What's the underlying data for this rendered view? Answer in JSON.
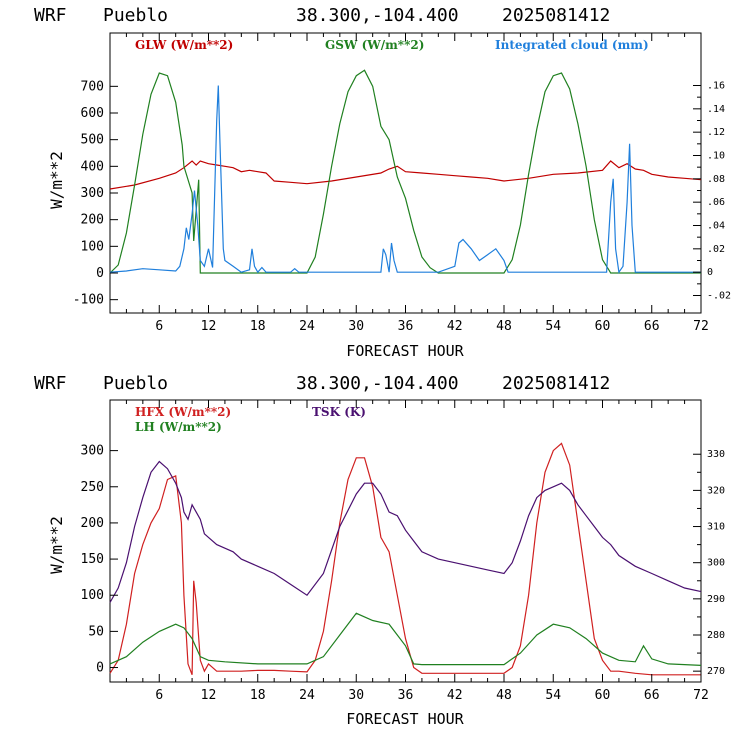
{
  "header": {
    "model": "WRF",
    "station": "Pueblo",
    "coords": "38.300,-104.400",
    "run": "2025081412"
  },
  "chart_data": [
    {
      "type": "line",
      "xlabel": "FORECAST HOUR",
      "ylabel": "W/m**2",
      "xlim": [
        0,
        72
      ],
      "ylim": [
        -150,
        900
      ],
      "y2lim": [
        -0.035,
        0.205
      ],
      "xticks": [
        "6",
        "12",
        "18",
        "24",
        "30",
        "36",
        "42",
        "48",
        "54",
        "60",
        "66",
        "72"
      ],
      "yticks": [
        "-100",
        "0",
        "100",
        "200",
        "300",
        "400",
        "500",
        "600",
        "700"
      ],
      "y2ticks": [
        "-.02",
        "0",
        ".02",
        ".04",
        ".06",
        ".08",
        ".10",
        ".12",
        ".14",
        ".16"
      ],
      "series": [
        {
          "name": "GLW (W/m**2)",
          "axis": "left",
          "color": "#c00000",
          "x": [
            0,
            3,
            6,
            8,
            9,
            10,
            10.5,
            11,
            12,
            13,
            14,
            15,
            16,
            17,
            18,
            19,
            20,
            22,
            24,
            27,
            30,
            33,
            34,
            35,
            36,
            38,
            40,
            42,
            44,
            46,
            48,
            51,
            54,
            57,
            60,
            61,
            62,
            63,
            64,
            65,
            66,
            68,
            70,
            72
          ],
          "y": [
            315,
            330,
            355,
            375,
            395,
            420,
            405,
            420,
            410,
            405,
            400,
            395,
            380,
            385,
            380,
            375,
            345,
            340,
            335,
            345,
            360,
            375,
            390,
            400,
            380,
            375,
            370,
            365,
            360,
            355,
            345,
            355,
            370,
            375,
            385,
            420,
            395,
            410,
            390,
            385,
            370,
            360,
            355,
            350
          ]
        },
        {
          "name": "GSW (W/m**2)",
          "axis": "left",
          "color": "#208020",
          "x": [
            0,
            1,
            2,
            3,
            4,
            5,
            6,
            7,
            8,
            8.8,
            9,
            10,
            10.2,
            10.8,
            11,
            12,
            12.5,
            24,
            25,
            26,
            27,
            28,
            29,
            30,
            31,
            32,
            33,
            34,
            35,
            36,
            37,
            38,
            39,
            40,
            48,
            49,
            50,
            51,
            52,
            53,
            54,
            55,
            56,
            57,
            58,
            59,
            60,
            60.8,
            61,
            62,
            63,
            64,
            72
          ],
          "y": [
            0,
            30,
            150,
            330,
            520,
            670,
            750,
            740,
            640,
            480,
            400,
            300,
            120,
            350,
            0,
            0,
            0,
            0,
            60,
            220,
            400,
            560,
            680,
            740,
            760,
            700,
            550,
            500,
            360,
            280,
            160,
            60,
            20,
            0,
            0,
            50,
            180,
            370,
            540,
            680,
            740,
            750,
            690,
            560,
            400,
            200,
            50,
            10,
            0,
            0,
            0,
            0,
            0
          ]
        },
        {
          "name": "Integrated cloud (mm)",
          "axis": "right",
          "color": "#1f7fdc",
          "x": [
            0,
            2,
            4,
            6,
            8,
            8.5,
            9,
            9.3,
            9.6,
            10,
            10.3,
            10.7,
            11,
            11.5,
            12,
            12.5,
            13,
            13.2,
            13.4,
            13.8,
            14,
            15,
            16,
            17,
            17.3,
            17.6,
            18,
            18.5,
            19,
            20,
            22,
            22.5,
            23,
            24,
            26,
            28,
            30,
            32,
            33,
            33.3,
            33.6,
            34,
            34.3,
            34.6,
            35,
            36,
            38,
            40,
            42,
            42.5,
            43,
            44,
            45,
            46,
            47,
            48,
            48.5,
            49,
            49.5,
            50,
            52,
            54,
            56,
            58,
            60,
            60.5,
            61,
            61.3,
            61.6,
            62,
            62.5,
            63,
            63.3,
            63.6,
            64,
            64.5,
            65,
            66,
            68,
            70,
            72
          ],
          "y": [
            0,
            0.001,
            0.003,
            0.002,
            0.001,
            0.005,
            0.02,
            0.038,
            0.028,
            0.05,
            0.07,
            0.04,
            0.01,
            0.005,
            0.02,
            0.004,
            0.13,
            0.16,
            0.11,
            0.02,
            0.01,
            0.005,
            0.0,
            0.002,
            0.02,
            0.005,
            0.0,
            0.004,
            0.0,
            0.0,
            0.0,
            0.003,
            0.0,
            0.0,
            0.0,
            0.0,
            0.0,
            0.0,
            0.0,
            0.02,
            0.015,
            0.0,
            0.025,
            0.01,
            0.0,
            0.0,
            0.0,
            0.0,
            0.005,
            0.025,
            0.028,
            0.02,
            0.01,
            0.015,
            0.02,
            0.01,
            0.0,
            0.0,
            0.0,
            0.0,
            0.0,
            0.0,
            0.0,
            0.0,
            0.0,
            0.0,
            0.06,
            0.08,
            0.02,
            0.0,
            0.005,
            0.06,
            0.11,
            0.04,
            0.0,
            0.0,
            0.0,
            0.0,
            0.0,
            0.0,
            0.0
          ]
        }
      ]
    },
    {
      "type": "line",
      "xlabel": "FORECAST HOUR",
      "ylabel": "W/m**2",
      "xlim": [
        0,
        72
      ],
      "ylim": [
        -20,
        370
      ],
      "y2lim": [
        267,
        345
      ],
      "xticks": [
        "6",
        "12",
        "18",
        "24",
        "30",
        "36",
        "42",
        "48",
        "54",
        "60",
        "66",
        "72"
      ],
      "yticks": [
        "0",
        "50",
        "100",
        "150",
        "200",
        "250",
        "300"
      ],
      "y2ticks": [
        "270",
        "280",
        "290",
        "300",
        "310",
        "320",
        "330"
      ],
      "series": [
        {
          "name": "HFX (W/m**2)",
          "axis": "left",
          "color": "#d02020",
          "x": [
            0,
            1,
            2,
            3,
            4,
            5,
            6,
            7,
            8,
            8.7,
            9,
            9.5,
            10,
            10.2,
            10.5,
            11,
            11.5,
            12,
            13,
            14,
            16,
            18,
            20,
            22,
            24,
            25,
            26,
            27,
            28,
            29,
            30,
            31,
            32,
            33,
            34,
            35,
            36,
            37,
            38,
            40,
            42,
            44,
            46,
            48,
            49,
            50,
            51,
            52,
            53,
            54,
            55,
            56,
            57,
            58,
            59,
            60,
            61,
            62,
            64,
            66,
            68,
            70,
            72
          ],
          "y": [
            -8,
            10,
            60,
            130,
            170,
            200,
            220,
            260,
            265,
            200,
            100,
            5,
            -10,
            120,
            90,
            10,
            -5,
            5,
            -5,
            -5,
            -5,
            -4,
            -4,
            -5,
            -6,
            10,
            50,
            120,
            200,
            260,
            290,
            290,
            250,
            180,
            160,
            100,
            40,
            0,
            -8,
            -8,
            -8,
            -8,
            -8,
            -8,
            0,
            30,
            100,
            200,
            270,
            300,
            310,
            280,
            200,
            120,
            40,
            10,
            -5,
            -5,
            -8,
            -10,
            -10,
            -10,
            -10
          ]
        },
        {
          "name": "LH (W/m**2)",
          "axis": "left",
          "color": "#208020",
          "x": [
            0,
            2,
            4,
            6,
            8,
            9,
            10,
            11,
            12,
            14,
            18,
            24,
            26,
            28,
            30,
            32,
            34,
            36,
            37,
            38,
            40,
            48,
            50,
            52,
            54,
            56,
            58,
            60,
            62,
            64,
            65,
            66,
            68,
            72
          ],
          "y": [
            5,
            15,
            35,
            50,
            60,
            55,
            40,
            15,
            10,
            8,
            5,
            5,
            15,
            45,
            75,
            65,
            60,
            30,
            5,
            4,
            4,
            4,
            20,
            45,
            60,
            55,
            40,
            20,
            10,
            8,
            30,
            12,
            5,
            3
          ]
        },
        {
          "name": "TSK (K)",
          "axis": "right",
          "color": "#4a1070",
          "x": [
            0,
            1,
            2,
            3,
            4,
            5,
            6,
            7,
            8,
            8.7,
            9,
            9.5,
            10,
            10.5,
            11,
            11.5,
            12,
            13,
            14,
            15,
            16,
            18,
            20,
            22,
            24,
            26,
            28,
            30,
            31,
            32,
            33,
            34,
            35,
            36,
            37,
            38,
            40,
            42,
            44,
            46,
            48,
            49,
            50,
            51,
            52,
            53,
            54,
            55,
            56,
            57,
            58,
            59,
            60,
            61,
            62,
            64,
            66,
            68,
            70,
            72
          ],
          "y": [
            289,
            293,
            300,
            310,
            318,
            325,
            328,
            326,
            322,
            318,
            314,
            312,
            316,
            314,
            312,
            308,
            307,
            305,
            304,
            303,
            301,
            299,
            297,
            294,
            291,
            297,
            310,
            319,
            322,
            322,
            319,
            314,
            313,
            309,
            306,
            303,
            301,
            300,
            299,
            298,
            297,
            300,
            306,
            313,
            318,
            320,
            321,
            322,
            320,
            316,
            313,
            310,
            307,
            305,
            302,
            299,
            297,
            295,
            293,
            292
          ]
        }
      ]
    }
  ]
}
